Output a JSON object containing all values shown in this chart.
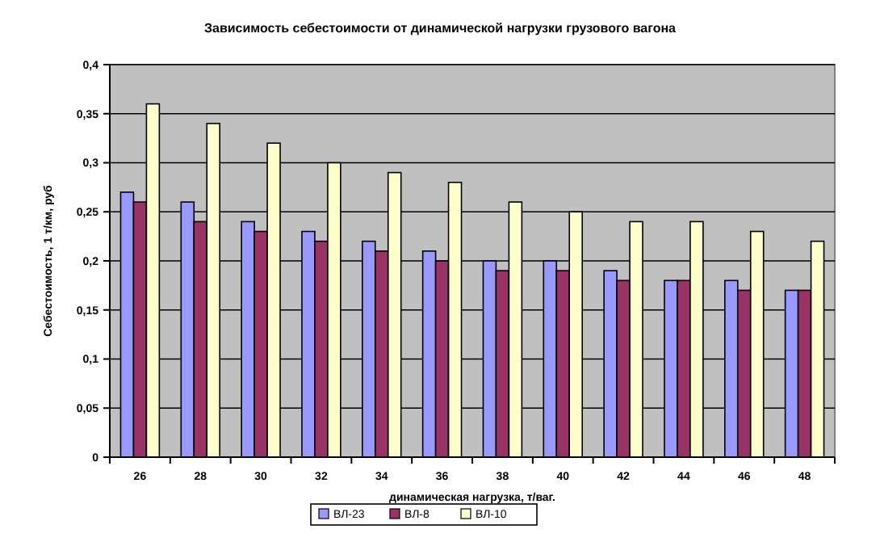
{
  "chart_data": {
    "type": "bar",
    "title": "Зависимость себестоимости от динамической нагрузки грузового вагона",
    "xlabel": "динамическая нагрузка, т/ваг.",
    "ylabel": "Себестоимость, 1 т/км, руб",
    "categories": [
      "26",
      "28",
      "30",
      "32",
      "34",
      "36",
      "38",
      "40",
      "42",
      "44",
      "46",
      "48"
    ],
    "series": [
      {
        "name": "ВЛ-23",
        "color": "#9999ff",
        "values": [
          0.27,
          0.26,
          0.24,
          0.23,
          0.22,
          0.21,
          0.2,
          0.2,
          0.19,
          0.18,
          0.18,
          0.17
        ]
      },
      {
        "name": "ВЛ-8",
        "color": "#993366",
        "values": [
          0.26,
          0.24,
          0.23,
          0.22,
          0.21,
          0.2,
          0.19,
          0.19,
          0.18,
          0.18,
          0.17,
          0.17
        ]
      },
      {
        "name": "ВЛ-10",
        "color": "#ffffcc",
        "values": [
          0.36,
          0.34,
          0.32,
          0.3,
          0.29,
          0.28,
          0.26,
          0.25,
          0.24,
          0.24,
          0.23,
          0.22
        ]
      }
    ],
    "ylim": [
      0,
      0.4
    ],
    "yticks": [
      0,
      {
        "value": 0.05,
        "label": "0,05"
      },
      {
        "value": 0.1,
        "label": "0,1"
      },
      {
        "value": 0.15,
        "label": "0,15"
      },
      {
        "value": 0.2,
        "label": "0,2"
      },
      {
        "value": 0.25,
        "label": "0,25"
      },
      {
        "value": 0.3,
        "label": "0,3"
      },
      {
        "value": 0.35,
        "label": "0,35"
      },
      {
        "value": 0.4,
        "label": "0,4"
      }
    ],
    "grid": "y",
    "legend": "bottom"
  }
}
